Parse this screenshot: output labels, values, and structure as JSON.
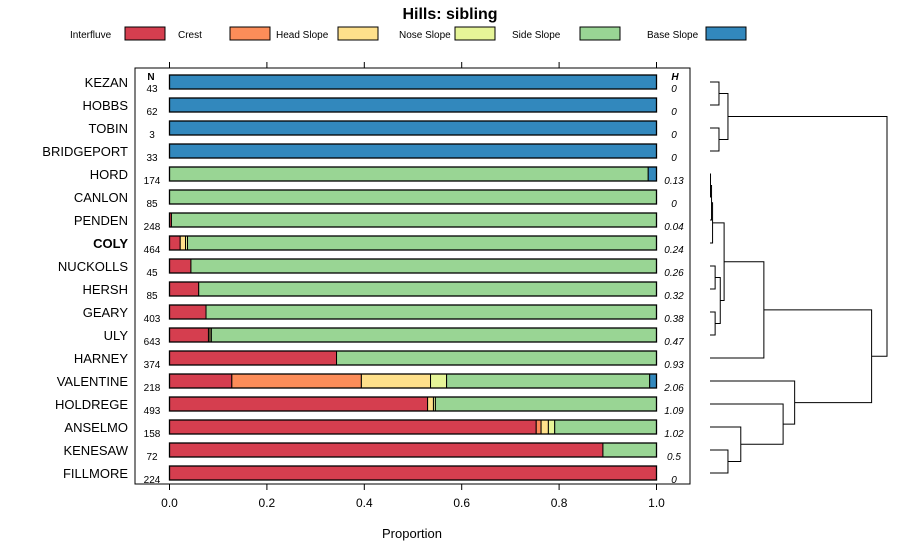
{
  "chart_data": {
    "type": "bar",
    "subtype": "stacked-horizontal-proportion",
    "title": "Hills: sibling",
    "xlabel": "Proportion",
    "ylabel": "",
    "xlim": [
      0,
      1
    ],
    "xticks": [
      "0.0",
      "0.2",
      "0.4",
      "0.6",
      "0.8",
      "1.0"
    ],
    "n_header": "N",
    "h_header": "H",
    "legend": [
      {
        "label": "Interfluve",
        "color": "#D53E4F"
      },
      {
        "label": "Crest",
        "color": "#FC8D59"
      },
      {
        "label": "Head Slope",
        "color": "#FEE08B"
      },
      {
        "label": "Nose Slope",
        "color": "#E6F598"
      },
      {
        "label": "Side Slope",
        "color": "#99D594"
      },
      {
        "label": "Base Slope",
        "color": "#3288BD"
      }
    ],
    "categories": [
      "KEZAN",
      "HOBBS",
      "TOBIN",
      "BRIDGEPORT",
      "HORD",
      "CANLON",
      "PENDEN",
      "COLY",
      "NUCKOLLS",
      "HERSH",
      "GEARY",
      "ULY",
      "HARNEY",
      "VALENTINE",
      "HOLDREGE",
      "ANSELMO",
      "KENESAW",
      "FILLMORE"
    ],
    "highlighted": "COLY",
    "n": [
      43,
      62,
      3,
      33,
      174,
      85,
      248,
      464,
      45,
      85,
      403,
      643,
      374,
      218,
      493,
      158,
      72,
      224
    ],
    "h": [
      "0",
      "0",
      "0",
      "0",
      "0.13",
      "0",
      "0.04",
      "0.24",
      "0.26",
      "0.32",
      "0.38",
      "0.47",
      "0.93",
      "2.06",
      "1.09",
      "1.02",
      "0.5",
      "0"
    ],
    "series": [
      {
        "name": "Interfluve",
        "values": [
          0,
          0,
          0,
          0,
          0,
          0,
          0.004,
          0.022,
          0.044,
          0.06,
          0.075,
          0.08,
          0.343,
          0.128,
          0.53,
          0.753,
          0.89,
          1.0
        ]
      },
      {
        "name": "Crest",
        "values": [
          0,
          0,
          0,
          0,
          0,
          0,
          0,
          0,
          0,
          0,
          0,
          0,
          0,
          0.266,
          0,
          0.01,
          0,
          0
        ]
      },
      {
        "name": "Head Slope",
        "values": [
          0,
          0,
          0,
          0,
          0,
          0,
          0,
          0.011,
          0,
          0,
          0,
          0.003,
          0,
          0.142,
          0.012,
          0.015,
          0,
          0
        ]
      },
      {
        "name": "Nose Slope",
        "values": [
          0,
          0,
          0,
          0,
          0,
          0,
          0,
          0.004,
          0,
          0,
          0,
          0.003,
          0,
          0.033,
          0.004,
          0.013,
          0,
          0
        ]
      },
      {
        "name": "Side Slope",
        "values": [
          0,
          0,
          0,
          0,
          0.983,
          1.0,
          0.996,
          0.963,
          0.956,
          0.94,
          0.925,
          0.914,
          0.657,
          0.417,
          0.454,
          0.209,
          0.11,
          0
        ]
      },
      {
        "name": "Base Slope",
        "values": [
          1.0,
          1.0,
          1.0,
          1.0,
          0.017,
          0,
          0,
          0,
          0,
          0,
          0,
          0,
          0,
          0.014,
          0,
          0,
          0,
          0
        ]
      }
    ],
    "dendrogram": {
      "leaves": [
        "KEZAN",
        "HOBBS",
        "TOBIN",
        "BRIDGEPORT",
        "HORD",
        "CANLON",
        "PENDEN",
        "COLY",
        "NUCKOLLS",
        "HERSH",
        "GEARY",
        "ULY",
        "HARNEY",
        "VALENTINE",
        "HOLDREGE",
        "ANSELMO",
        "KENESAW",
        "FILLMORE"
      ],
      "merges": [
        [
          0,
          1,
          0.35
        ],
        [
          2,
          3,
          0.35
        ],
        [
          18,
          19,
          0.7
        ],
        [
          4,
          5,
          0.02
        ],
        [
          21,
          6,
          0.06
        ],
        [
          22,
          7,
          0.1
        ],
        [
          8,
          9,
          0.2
        ],
        [
          10,
          11,
          0.2
        ],
        [
          24,
          25,
          0.4
        ],
        [
          23,
          26,
          0.55
        ],
        [
          27,
          12,
          2.1
        ],
        [
          16,
          17,
          0.7
        ],
        [
          15,
          29,
          1.2
        ],
        [
          14,
          30,
          2.85
        ],
        [
          13,
          31,
          3.3
        ],
        [
          28,
          32,
          6.3
        ],
        [
          20,
          33,
          6.9
        ]
      ]
    }
  }
}
